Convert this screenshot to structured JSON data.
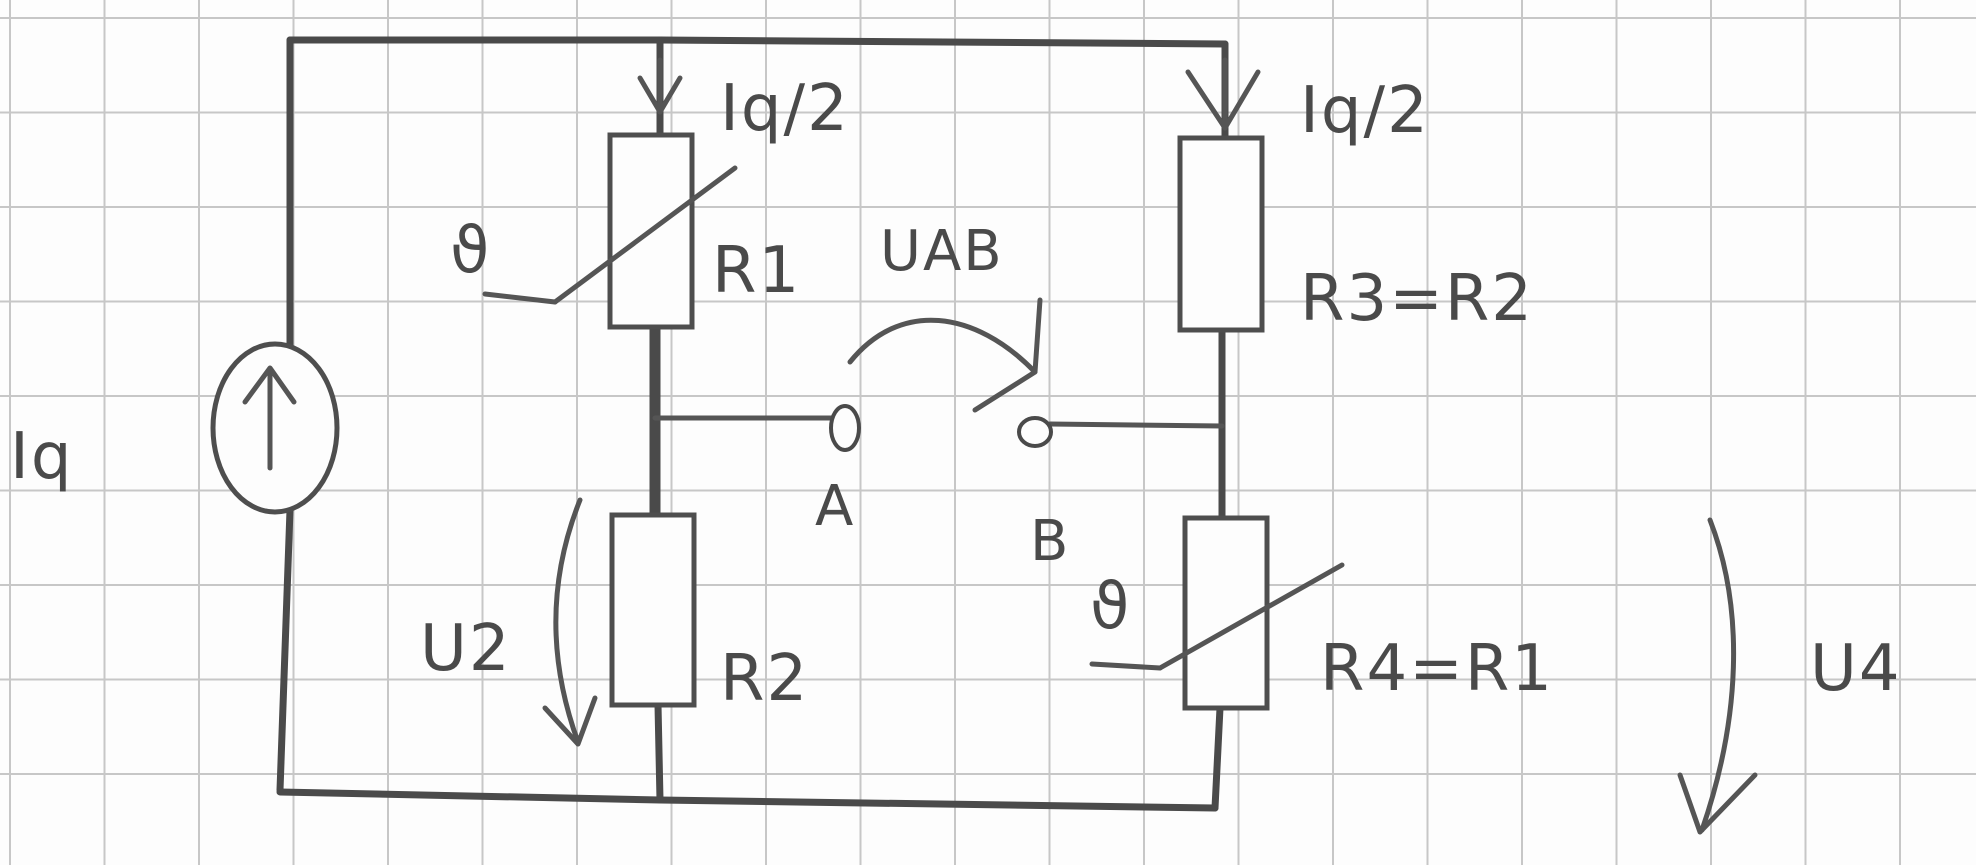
{
  "labels": {
    "source": "Iq",
    "r1_current": "Iq/2",
    "r3_current": "Iq/2",
    "r1": "R1",
    "r2": "R2",
    "r3": "R3=R2",
    "r4": "R4=R1",
    "u_ab": "UAB",
    "u2": "U2",
    "u4": "U4",
    "node_a": "A",
    "node_b": "B",
    "theta_r1": "ϑ",
    "theta_r4": "ϑ"
  },
  "colors": {
    "ink": "#4a4a4a",
    "paper": "#fdfdfd",
    "grid": "#c7c7c7"
  },
  "icons": {
    "source_arrow": "up-arrow-icon"
  }
}
